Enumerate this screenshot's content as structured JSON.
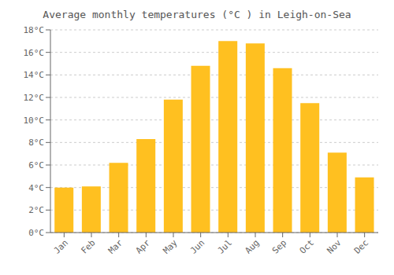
{
  "chart_data": {
    "type": "bar",
    "title": "Average monthly temperatures (°C ) in Leigh-on-Sea",
    "categories": [
      "Jan",
      "Feb",
      "Mar",
      "Apr",
      "May",
      "Jun",
      "Jul",
      "Aug",
      "Sep",
      "Oct",
      "Nov",
      "Dec"
    ],
    "values": [
      4.0,
      4.1,
      6.2,
      8.3,
      11.8,
      14.8,
      17.0,
      16.8,
      14.6,
      11.5,
      7.1,
      4.9
    ],
    "color": "#FFC020",
    "ylim": [
      0,
      18
    ],
    "yticks": [
      {
        "value": 0,
        "label": "0°C"
      },
      {
        "value": 2,
        "label": "2°C"
      },
      {
        "value": 4,
        "label": "4°C"
      },
      {
        "value": 6,
        "label": "6°C"
      },
      {
        "value": 8,
        "label": "8°C"
      },
      {
        "value": 10,
        "label": "10°C"
      },
      {
        "value": 12,
        "label": "12°C"
      },
      {
        "value": 14,
        "label": "14°C"
      },
      {
        "value": 16,
        "label": "16°C"
      },
      {
        "value": 18,
        "label": "18°C"
      }
    ],
    "grid": true
  }
}
